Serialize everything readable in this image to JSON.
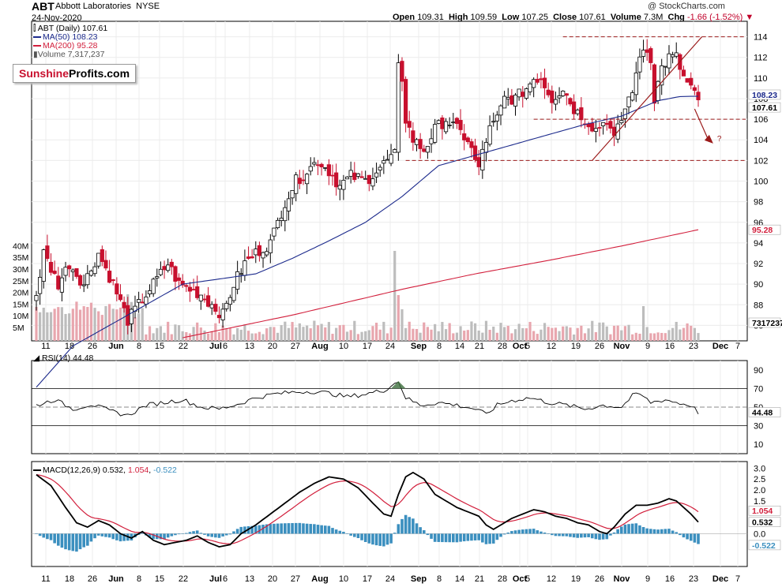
{
  "header": {
    "ticker": "ABT",
    "company": "Abbott Laboratories",
    "exchange": "NYSE",
    "copyright": "@ StockCharts.com",
    "date": "24-Nov-2020",
    "open_label": "Open",
    "open": "109.31",
    "high_label": "High",
    "high": "109.59",
    "low_label": "Low",
    "low": "107.25",
    "close_label": "Close",
    "close": "107.61",
    "volume_label": "Volume",
    "volume": "7.3M",
    "chg_label": "Chg",
    "chg": "-1.66 (-1.52%)"
  },
  "logo": {
    "part1": "Sunshine",
    "part2": "Profits.com"
  },
  "legend": {
    "price": "ABT (Daily) 107.61",
    "ma50": "MA(50) 108.23",
    "ma200": "MA(200) 95.28",
    "volume": "Volume 7,317,237"
  },
  "rsi_label": "RSI(14) 44.48",
  "macd_label": {
    "name": "MACD(12,26,9)",
    "macd": "0.532",
    "signal": "1.054",
    "hist": "-0.522"
  },
  "colors": {
    "up": "#000000",
    "down": "#c8102e",
    "ma50": "#1c2a8c",
    "ma200": "#d21f3c",
    "volume": "#bdbdbd",
    "volume_down": "#e8a6ae",
    "macd_hist": "#3b8fbf",
    "annotation": "#9b1b1b"
  },
  "chart_data": {
    "type": "candlestick",
    "date_ticks": [
      "11",
      "18",
      "26",
      "Jun",
      "8",
      "15",
      "22",
      "Jul",
      "6",
      "13",
      "20",
      "27",
      "Aug",
      "10",
      "17",
      "24",
      "Sep",
      "8",
      "14",
      "21",
      "28",
      "Oct",
      "5",
      "12",
      "19",
      "26",
      "Nov",
      "9",
      "16",
      "23",
      "Dec",
      "7"
    ],
    "price_axis": {
      "ticks": [
        86,
        88,
        90,
        92,
        94,
        96,
        98,
        100,
        102,
        104,
        106,
        108,
        110,
        112,
        114
      ],
      "range": [
        84.5,
        115.5
      ]
    },
    "price_tags": [
      {
        "label": "108.23",
        "value": 108.23
      },
      {
        "label": "107.61",
        "value": 107.61
      },
      {
        "label": "95.28",
        "value": 95.28
      },
      {
        "label": "7317237",
        "value": 7.32
      }
    ],
    "volume_axis": {
      "ticks": [
        "5M",
        "10M",
        "15M",
        "20M",
        "25M",
        "30M",
        "35M",
        "40M"
      ]
    },
    "rsi_axis": {
      "ticks": [
        10,
        30,
        50,
        70,
        90
      ],
      "range": [
        0,
        100
      ],
      "levels": [
        30,
        50,
        70
      ]
    },
    "rsi_tag": "44.48",
    "macd_axis": {
      "ticks": [
        "-0.5",
        "0.0",
        "0.5",
        "1.0",
        "1.5",
        "2.0",
        "2.5",
        "3.0"
      ],
      "range": [
        -1.5,
        3.3
      ]
    },
    "macd_tags": [
      "1.054",
      "0.532",
      "-0.522"
    ],
    "resistance_level": 114,
    "support_levels": [
      106,
      102
    ],
    "annotation": "?",
    "close_keypoints": [
      [
        0,
        89
      ],
      [
        2,
        93
      ],
      [
        6,
        90
      ],
      [
        9,
        92
      ],
      [
        13,
        90
      ],
      [
        17,
        93
      ],
      [
        21,
        90
      ],
      [
        25,
        86.5
      ],
      [
        28,
        88
      ],
      [
        32,
        90
      ],
      [
        36,
        92
      ],
      [
        39,
        90
      ],
      [
        42,
        89.5
      ],
      [
        45,
        89
      ],
      [
        48,
        88
      ],
      [
        51,
        87
      ],
      [
        54,
        90
      ],
      [
        57,
        92
      ],
      [
        60,
        93
      ],
      [
        64,
        94
      ],
      [
        66,
        96
      ],
      [
        68,
        98
      ],
      [
        71,
        100
      ],
      [
        74,
        101
      ],
      [
        77,
        102
      ],
      [
        80,
        101
      ],
      [
        83,
        99.5
      ],
      [
        86,
        100.5
      ],
      [
        90,
        100
      ],
      [
        93,
        101
      ],
      [
        96,
        102
      ],
      [
        98,
        102.5
      ],
      [
        99,
        111
      ],
      [
        100,
        110
      ],
      [
        101,
        106
      ],
      [
        103,
        104
      ],
      [
        106,
        103
      ],
      [
        109,
        105
      ],
      [
        112,
        106
      ],
      [
        115,
        105
      ],
      [
        118,
        104
      ],
      [
        121,
        101
      ],
      [
        122,
        103
      ],
      [
        124,
        105
      ],
      [
        126,
        106
      ],
      [
        128,
        108
      ],
      [
        131,
        108
      ],
      [
        134,
        109
      ],
      [
        136,
        110
      ],
      [
        138,
        110
      ],
      [
        141,
        108
      ],
      [
        144,
        109
      ],
      [
        147,
        107
      ],
      [
        150,
        106
      ],
      [
        153,
        105
      ],
      [
        156,
        106
      ],
      [
        158,
        104
      ],
      [
        161,
        107
      ],
      [
        164,
        110
      ],
      [
        165,
        112
      ],
      [
        166,
        113
      ],
      [
        168,
        112
      ],
      [
        169,
        108
      ],
      [
        171,
        111
      ],
      [
        173,
        112
      ],
      [
        175,
        112
      ],
      [
        177,
        110
      ],
      [
        179,
        109
      ],
      [
        181,
        107.61
      ]
    ],
    "ma50_keypoints": [
      [
        0,
        80
      ],
      [
        10,
        84
      ],
      [
        20,
        86
      ],
      [
        30,
        88
      ],
      [
        40,
        90
      ],
      [
        50,
        90.5
      ],
      [
        60,
        91
      ],
      [
        70,
        92.5
      ],
      [
        80,
        94.2
      ],
      [
        90,
        96
      ],
      [
        100,
        98.5
      ],
      [
        110,
        101.5
      ],
      [
        120,
        102.5
      ],
      [
        130,
        103.5
      ],
      [
        140,
        104.5
      ],
      [
        150,
        105.5
      ],
      [
        160,
        106.3
      ],
      [
        170,
        107.8
      ],
      [
        176,
        108.2
      ],
      [
        181,
        108.23
      ]
    ],
    "ma200_keypoints": [
      [
        40,
        84.8
      ],
      [
        70,
        87
      ],
      [
        100,
        89.5
      ],
      [
        120,
        91
      ],
      [
        140,
        92.3
      ],
      [
        160,
        93.7
      ],
      [
        181,
        95.28
      ]
    ],
    "rsi_keypoints": [
      [
        0,
        52
      ],
      [
        5,
        58
      ],
      [
        10,
        48
      ],
      [
        15,
        53
      ],
      [
        20,
        46
      ],
      [
        25,
        41
      ],
      [
        30,
        52
      ],
      [
        35,
        55
      ],
      [
        40,
        58
      ],
      [
        45,
        50
      ],
      [
        50,
        48
      ],
      [
        55,
        53
      ],
      [
        60,
        60
      ],
      [
        65,
        64
      ],
      [
        70,
        66
      ],
      [
        75,
        67
      ],
      [
        80,
        65
      ],
      [
        85,
        61
      ],
      [
        90,
        64
      ],
      [
        95,
        68
      ],
      [
        99,
        78
      ],
      [
        101,
        60
      ],
      [
        105,
        52
      ],
      [
        110,
        55
      ],
      [
        115,
        52
      ],
      [
        120,
        48
      ],
      [
        123,
        42
      ],
      [
        126,
        52
      ],
      [
        130,
        57
      ],
      [
        135,
        60
      ],
      [
        140,
        55
      ],
      [
        145,
        52
      ],
      [
        150,
        48
      ],
      [
        155,
        52
      ],
      [
        160,
        50
      ],
      [
        163,
        62
      ],
      [
        165,
        64
      ],
      [
        168,
        55
      ],
      [
        172,
        58
      ],
      [
        176,
        54
      ],
      [
        179,
        52
      ],
      [
        181,
        44.48
      ]
    ],
    "macd_keypoints": [
      [
        0,
        2.7
      ],
      [
        4,
        2.2
      ],
      [
        8,
        1.2
      ],
      [
        11,
        0.5
      ],
      [
        14,
        0.3
      ],
      [
        17,
        0.6
      ],
      [
        20,
        0.4
      ],
      [
        23,
        0.0
      ],
      [
        26,
        -0.2
      ],
      [
        29,
        0.1
      ],
      [
        32,
        -0.3
      ],
      [
        35,
        -0.5
      ],
      [
        38,
        -0.4
      ],
      [
        41,
        -0.3
      ],
      [
        44,
        -0.1
      ],
      [
        47,
        -0.4
      ],
      [
        50,
        -0.6
      ],
      [
        53,
        -0.5
      ],
      [
        56,
        0.0
      ],
      [
        60,
        0.4
      ],
      [
        64,
        0.9
      ],
      [
        68,
        1.4
      ],
      [
        72,
        1.9
      ],
      [
        76,
        2.3
      ],
      [
        80,
        2.6
      ],
      [
        84,
        2.5
      ],
      [
        88,
        2.1
      ],
      [
        92,
        1.4
      ],
      [
        95,
        0.9
      ],
      [
        97,
        0.8
      ],
      [
        99,
        1.8
      ],
      [
        101,
        2.6
      ],
      [
        103,
        2.8
      ],
      [
        106,
        2.5
      ],
      [
        109,
        1.8
      ],
      [
        112,
        1.5
      ],
      [
        115,
        1.2
      ],
      [
        118,
        1.0
      ],
      [
        121,
        0.8
      ],
      [
        123,
        0.4
      ],
      [
        125,
        0.2
      ],
      [
        127,
        0.4
      ],
      [
        130,
        0.7
      ],
      [
        133,
        0.9
      ],
      [
        136,
        1.1
      ],
      [
        139,
        1.0
      ],
      [
        142,
        0.8
      ],
      [
        145,
        0.7
      ],
      [
        148,
        0.5
      ],
      [
        151,
        0.4
      ],
      [
        154,
        0.1
      ],
      [
        156,
        0.0
      ],
      [
        158,
        0.3
      ],
      [
        161,
        0.9
      ],
      [
        164,
        1.3
      ],
      [
        167,
        1.3
      ],
      [
        170,
        1.4
      ],
      [
        173,
        1.6
      ],
      [
        175,
        1.5
      ],
      [
        177,
        1.2
      ],
      [
        179,
        0.9
      ],
      [
        181,
        0.532
      ]
    ]
  }
}
